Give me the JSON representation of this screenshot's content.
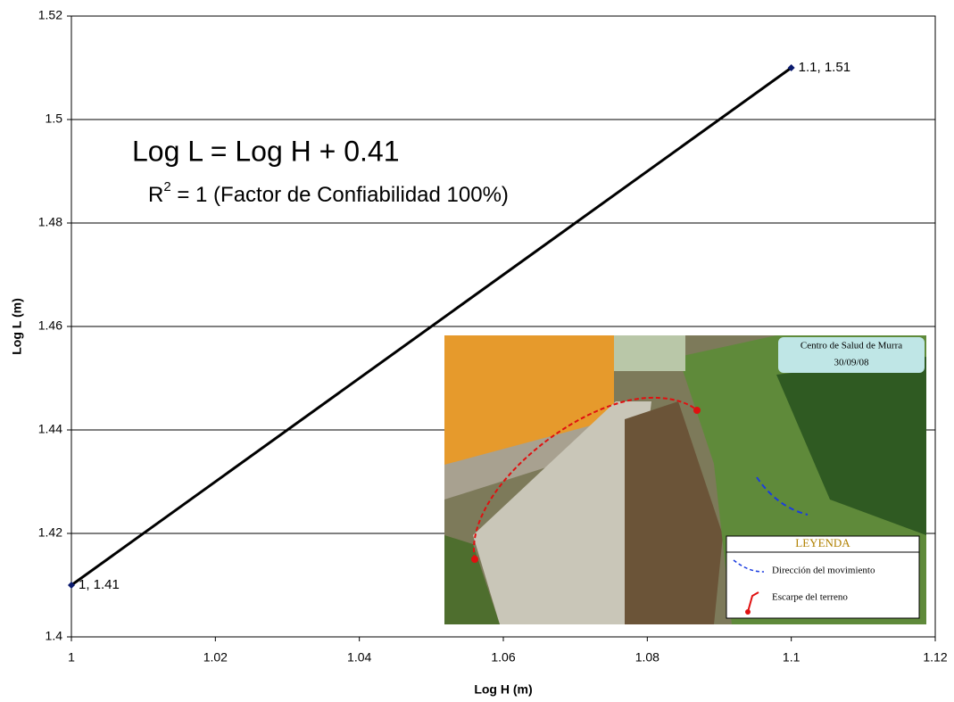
{
  "chart_data": {
    "type": "line",
    "annotations": [
      "Log L = Log H + 0.41",
      "R",
      "2",
      " = 1 (Factor de Confiabilidad 100%)"
    ],
    "x_label": "Log H (m)",
    "y_label": "Log L (m)",
    "series": [
      {
        "color": "#000000",
        "marker_color": "#0a1a6e",
        "x": [
          1,
          1.1
        ],
        "values": [
          1.41,
          1.51
        ],
        "value_labels": [
          "1, 1.41",
          "1.1, 1.51"
        ]
      }
    ],
    "xlim": [
      1,
      1.12
    ],
    "xticks": [
      1,
      1.02,
      1.04,
      1.06,
      1.08,
      1.1,
      1.12
    ],
    "ylim": [
      1.4,
      1.52
    ],
    "yticks": [
      1.4,
      1.42,
      1.44,
      1.46,
      1.48,
      1.5,
      1.52
    ],
    "grid": true
  },
  "photo_inset": {
    "caption": "Centro de Salud de Murra",
    "date": "30/09/08",
    "legend_title": "LEYENDA",
    "legend_items": [
      "Dirección del movimiento",
      "Escarpe del  terreno"
    ]
  }
}
